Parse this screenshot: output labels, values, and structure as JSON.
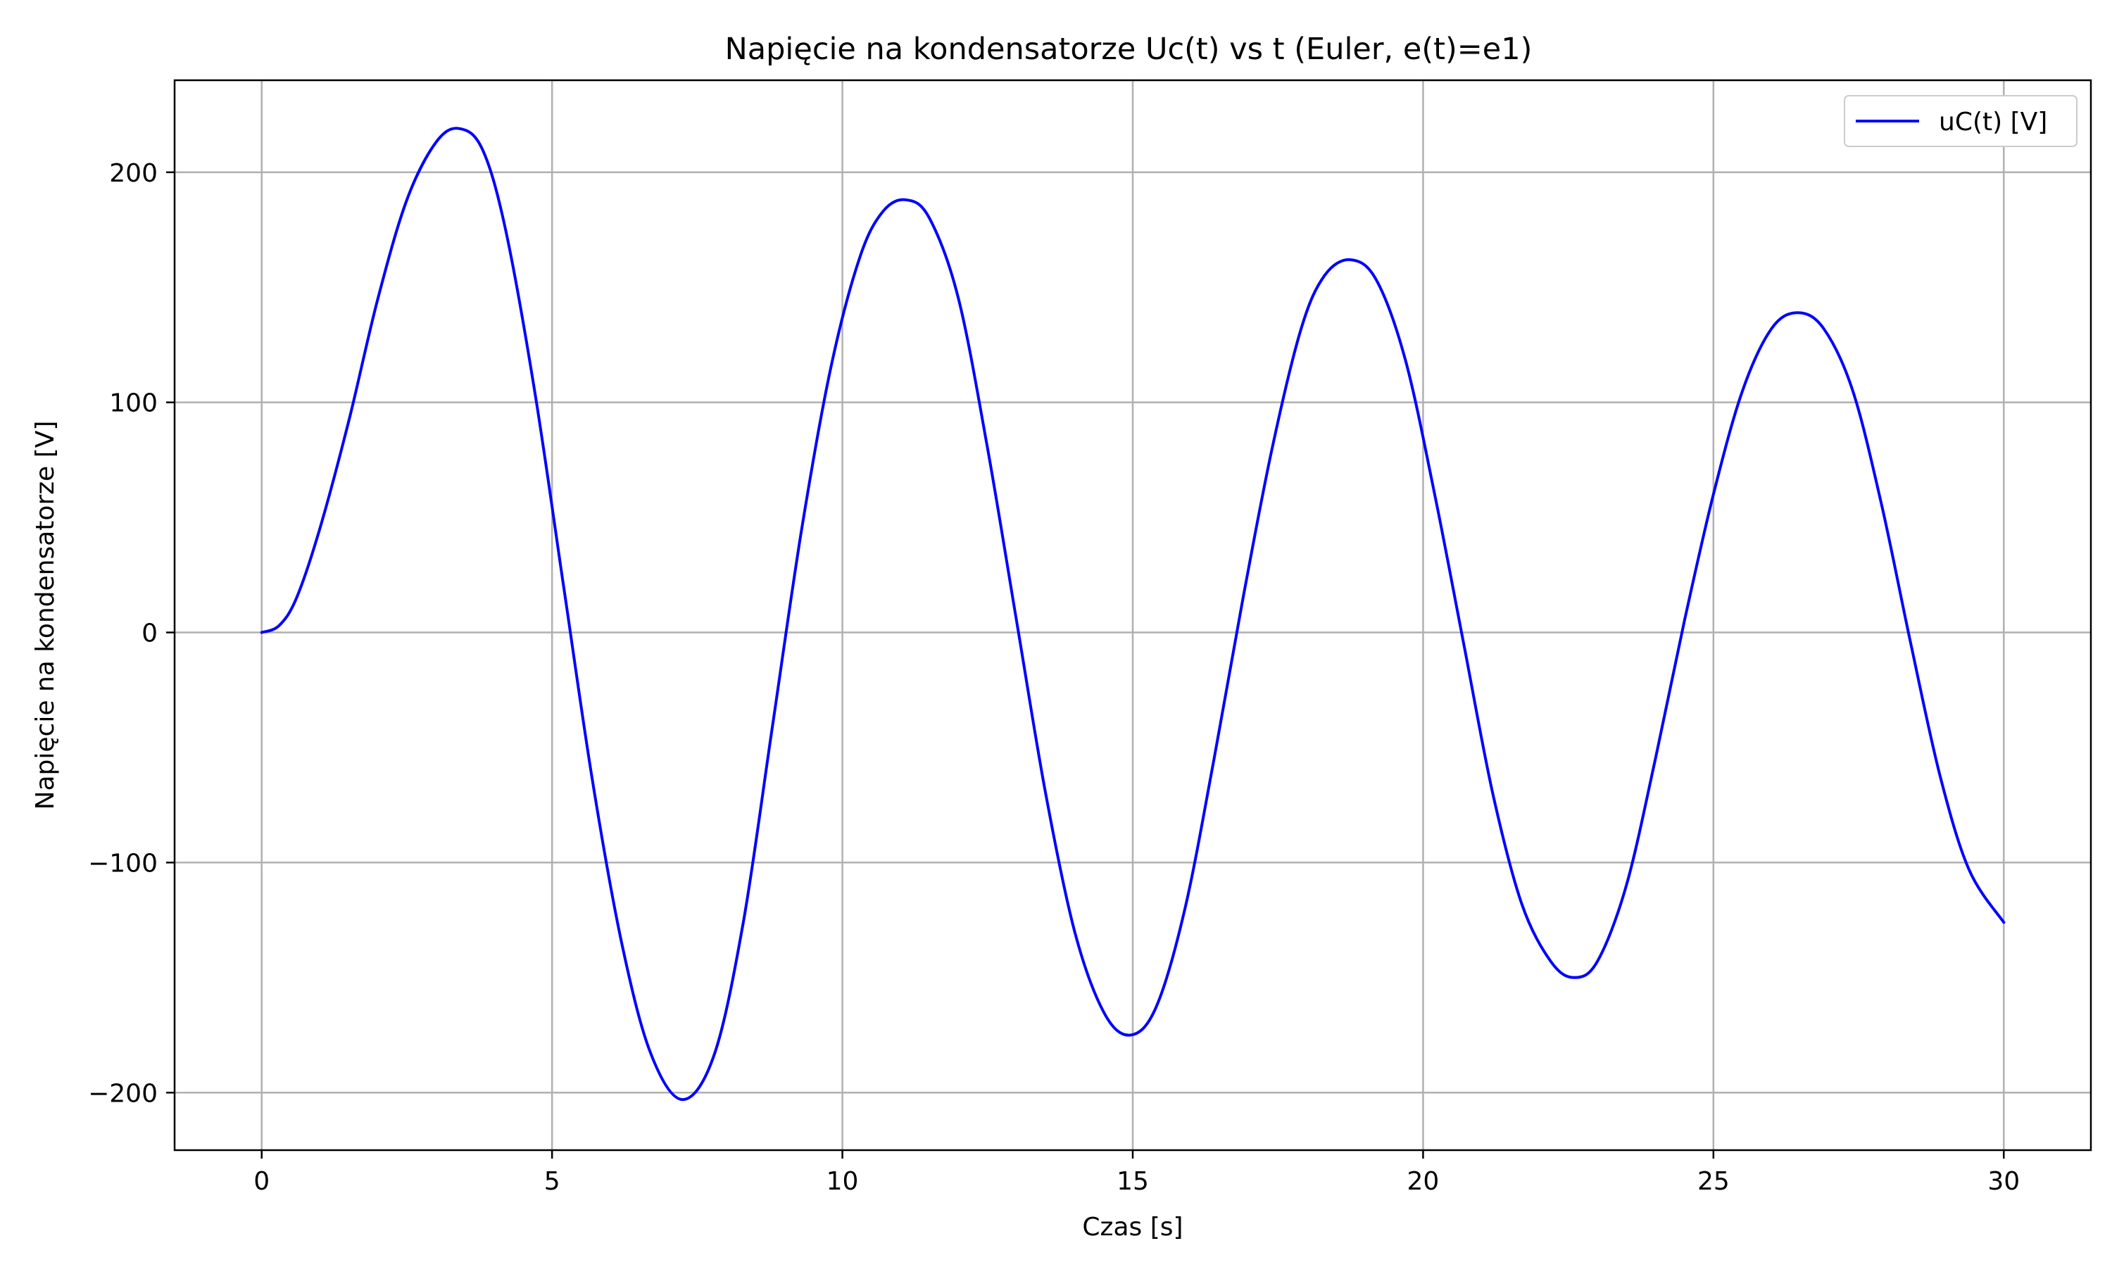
{
  "chart_data": {
    "type": "line",
    "title": "Napięcie na kondensatorze Uc(t) vs t (Euler, e(t)=e1)",
    "xlabel": "Czas [s]",
    "ylabel": "Napięcie na kondensatorze [V]",
    "xlim": [
      -1.5,
      31.5
    ],
    "ylim": [
      -225,
      240
    ],
    "x_ticks": [
      0,
      5,
      10,
      15,
      20,
      25,
      30
    ],
    "y_ticks": [
      -200,
      -100,
      0,
      100,
      200
    ],
    "x_tick_labels": [
      "0",
      "5",
      "10",
      "15",
      "20",
      "25",
      "30"
    ],
    "y_tick_labels": [
      "−200",
      "−100",
      "0",
      "100",
      "200"
    ],
    "grid": true,
    "legend_position": "top-right",
    "series": [
      {
        "name": "uC(t) [V]",
        "color": "#0000ff",
        "points": [
          [
            0,
            0
          ],
          [
            0.3,
            3
          ],
          [
            0.6,
            15
          ],
          [
            1.0,
            45
          ],
          [
            1.5,
            92
          ],
          [
            2.0,
            145
          ],
          [
            2.5,
            188
          ],
          [
            3.0,
            213
          ],
          [
            3.4,
            219
          ],
          [
            3.8,
            210
          ],
          [
            4.2,
            175
          ],
          [
            4.7,
            105
          ],
          [
            5.2,
            20
          ],
          [
            5.7,
            -65
          ],
          [
            6.2,
            -135
          ],
          [
            6.7,
            -183
          ],
          [
            7.25,
            -203
          ],
          [
            7.8,
            -183
          ],
          [
            8.3,
            -125
          ],
          [
            8.8,
            -40
          ],
          [
            9.3,
            45
          ],
          [
            9.8,
            115
          ],
          [
            10.3,
            163
          ],
          [
            10.7,
            183
          ],
          [
            11.1,
            188
          ],
          [
            11.5,
            180
          ],
          [
            12.0,
            145
          ],
          [
            12.5,
            80
          ],
          [
            13.0,
            5
          ],
          [
            13.5,
            -70
          ],
          [
            14.0,
            -130
          ],
          [
            14.5,
            -165
          ],
          [
            14.95,
            -175
          ],
          [
            15.4,
            -163
          ],
          [
            15.9,
            -120
          ],
          [
            16.4,
            -55
          ],
          [
            16.9,
            15
          ],
          [
            17.4,
            80
          ],
          [
            17.9,
            132
          ],
          [
            18.3,
            155
          ],
          [
            18.75,
            162
          ],
          [
            19.2,
            153
          ],
          [
            19.7,
            118
          ],
          [
            20.2,
            60
          ],
          [
            20.7,
            -5
          ],
          [
            21.2,
            -70
          ],
          [
            21.7,
            -118
          ],
          [
            22.2,
            -143
          ],
          [
            22.6,
            -150
          ],
          [
            23.0,
            -143
          ],
          [
            23.5,
            -110
          ],
          [
            24.0,
            -55
          ],
          [
            24.5,
            5
          ],
          [
            25.0,
            60
          ],
          [
            25.5,
            105
          ],
          [
            26.0,
            132
          ],
          [
            26.45,
            139
          ],
          [
            26.9,
            132
          ],
          [
            27.4,
            105
          ],
          [
            27.9,
            55
          ],
          [
            28.4,
            -5
          ],
          [
            28.9,
            -62
          ],
          [
            29.4,
            -103
          ],
          [
            30.0,
            -126
          ]
        ]
      }
    ]
  }
}
